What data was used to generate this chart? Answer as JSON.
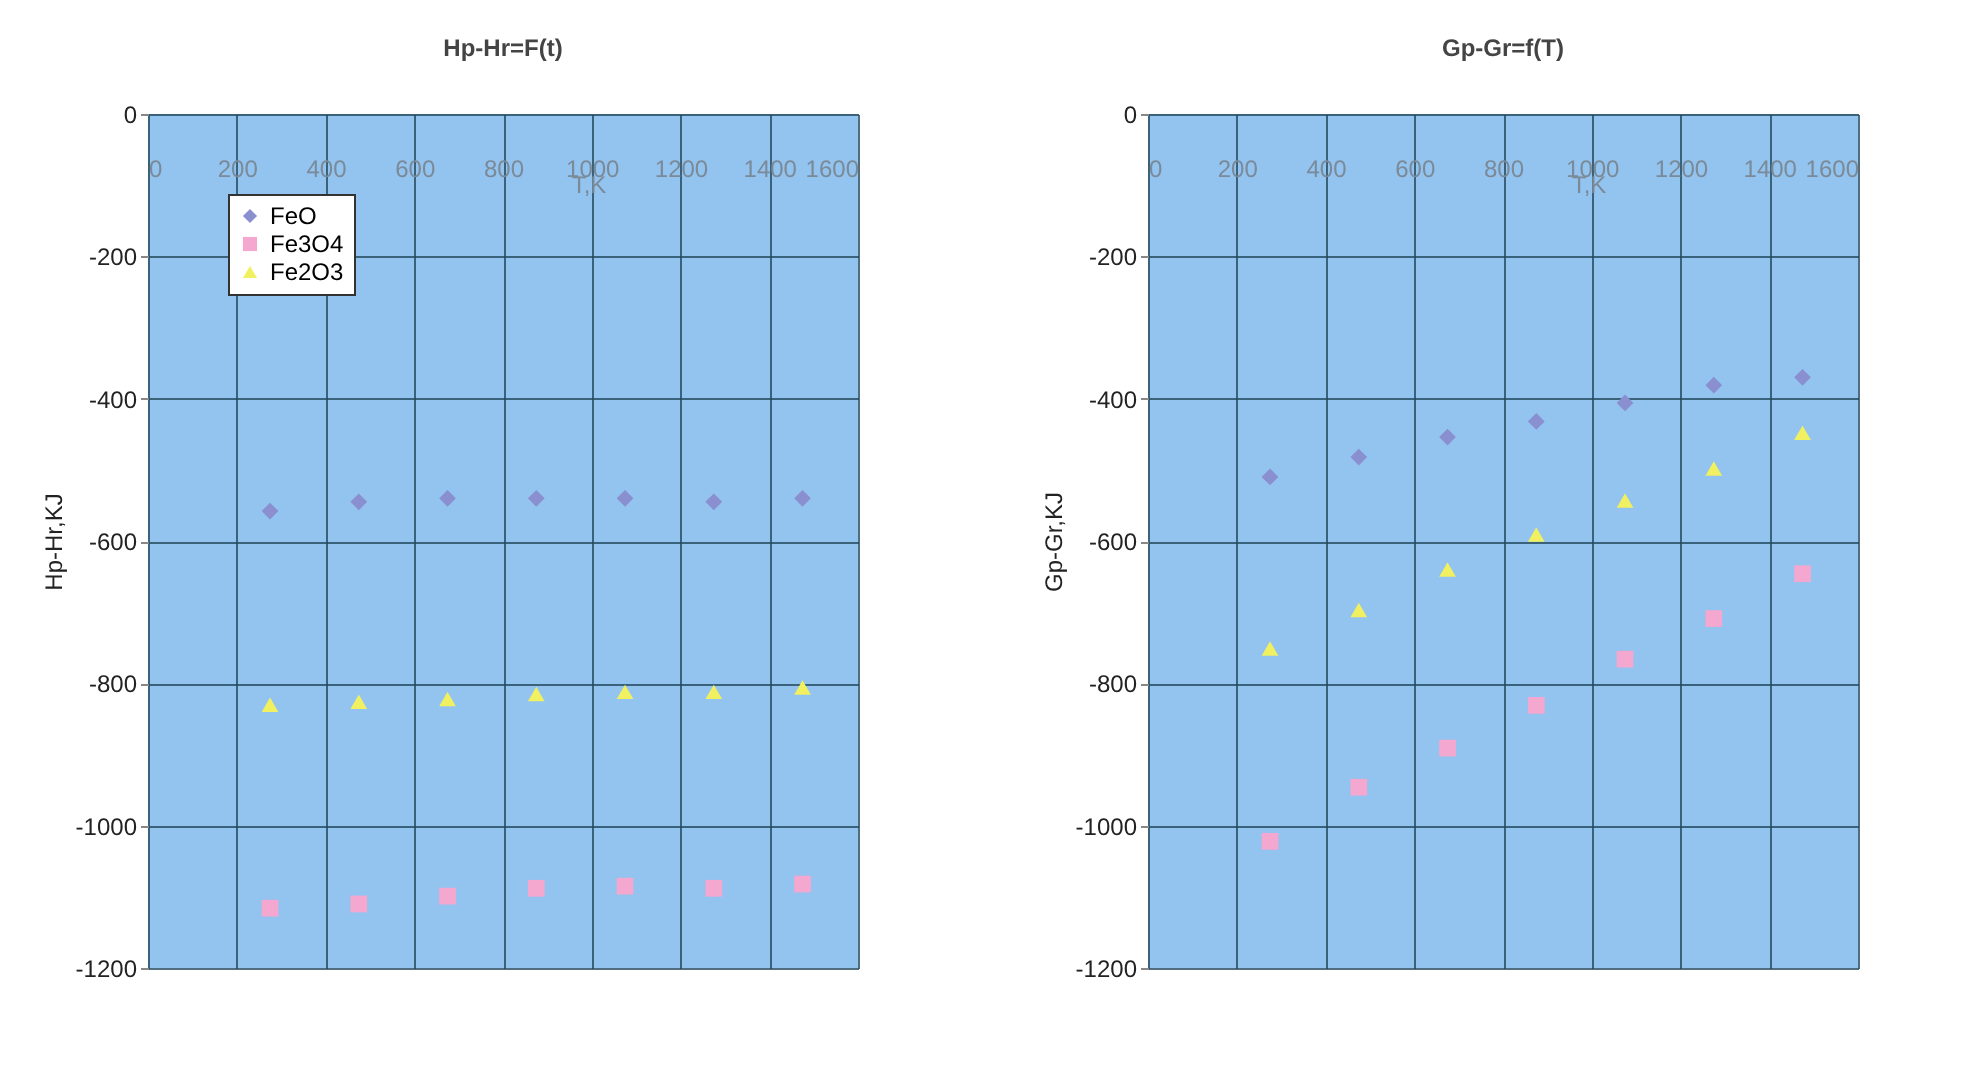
{
  "chart_data": [
    {
      "type": "scatter",
      "title": "Hp-Hr=F(t)",
      "xlabel": "T,K",
      "ylabel": "Hp-Hr,KJ",
      "x": [
        275,
        475,
        675,
        875,
        1075,
        1275,
        1475
      ],
      "series": [
        {
          "name": "FeO",
          "color": "#8a8fd0",
          "marker": "diamond",
          "values": [
            -558,
            -545,
            -540,
            -540,
            -540,
            -545,
            -540
          ]
        },
        {
          "name": "Fe3O4",
          "color": "#f4a7cf",
          "marker": "square",
          "values": [
            -1116,
            -1110,
            -1099,
            -1088,
            -1085,
            -1088,
            -1082
          ]
        },
        {
          "name": "Fe2O3",
          "color": "#f0f060",
          "marker": "triangle",
          "values": [
            -830,
            -826,
            -822,
            -815,
            -812,
            -812,
            -806
          ]
        }
      ],
      "xlim": [
        0,
        1600
      ],
      "xticks": [
        0,
        200,
        400,
        600,
        800,
        1000,
        1200,
        1400,
        1600
      ],
      "ylim": [
        -1200,
        0
      ],
      "yticks": [
        -1200,
        -1000,
        -800,
        -600,
        -400,
        -200,
        0
      ],
      "grid": true,
      "legend": "top left"
    },
    {
      "type": "scatter",
      "title": "Gp-Gr=f(T)",
      "xlabel": "T,K",
      "ylabel": "Gp-Gr,KJ",
      "x": [
        275,
        475,
        675,
        875,
        1075,
        1275,
        1475
      ],
      "series": [
        {
          "name": "FeO",
          "color": "#8a8fd0",
          "marker": "diamond",
          "values": [
            -510,
            -482,
            -454,
            -432,
            -406,
            -381,
            -370
          ]
        },
        {
          "name": "Fe3O4",
          "color": "#f4a7cf",
          "marker": "square",
          "values": [
            -1022,
            -946,
            -891,
            -831,
            -766,
            -709,
            -646
          ]
        },
        {
          "name": "Fe2O3",
          "color": "#f0f060",
          "marker": "triangle",
          "values": [
            -751,
            -697,
            -640,
            -591,
            -543,
            -498,
            -448
          ]
        }
      ],
      "xlim": [
        0,
        1600
      ],
      "xticks": [
        0,
        200,
        400,
        600,
        800,
        1000,
        1200,
        1400,
        1600
      ],
      "ylim": [
        -1200,
        0
      ],
      "yticks": [
        -1200,
        -1000,
        -800,
        -600,
        -400,
        -200,
        0
      ],
      "grid": true,
      "legend": "top left"
    }
  ]
}
